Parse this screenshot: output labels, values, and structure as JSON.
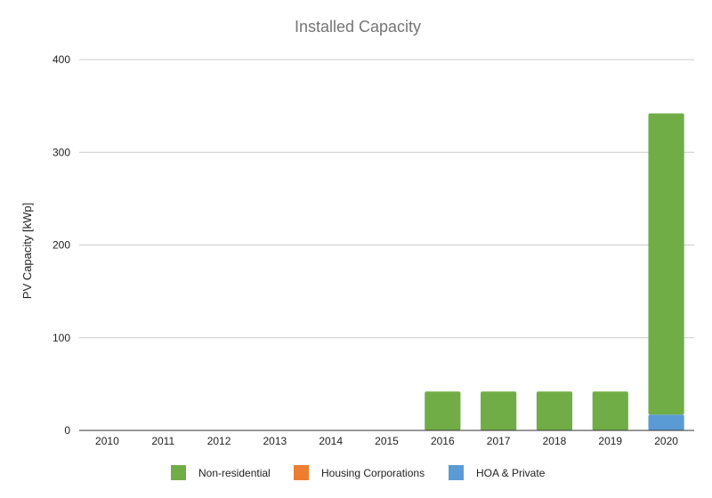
{
  "chart_data": {
    "type": "bar",
    "stacked": true,
    "title": "Installed Capacity",
    "xlabel": "",
    "ylabel": "PV Capacity [kWp]",
    "ylim": [
      0,
      400
    ],
    "yticks": [
      "0",
      "100",
      "200",
      "300",
      "400"
    ],
    "categories": [
      "2010",
      "2011",
      "2012",
      "2013",
      "2014",
      "2015",
      "2016",
      "2017",
      "2018",
      "2019",
      "2020"
    ],
    "series": [
      {
        "name": "HOA & Private",
        "color": "#5b9bd5",
        "values": [
          0,
          0,
          0,
          0,
          0,
          0,
          0,
          0,
          0,
          0,
          17
        ]
      },
      {
        "name": "Housing Corporations",
        "color": "#ed7d31",
        "values": [
          0,
          0,
          0,
          0,
          0,
          0,
          0,
          0,
          0,
          0,
          0
        ]
      },
      {
        "name": "Non-residential",
        "color": "#70ad47",
        "values": [
          0,
          0,
          0,
          0,
          0,
          0,
          42,
          42,
          42,
          42,
          325
        ]
      }
    ],
    "legend": {
      "position": "bottom",
      "order": [
        "Non-residential",
        "Housing Corporations",
        "HOA & Private"
      ]
    },
    "grid": true
  }
}
